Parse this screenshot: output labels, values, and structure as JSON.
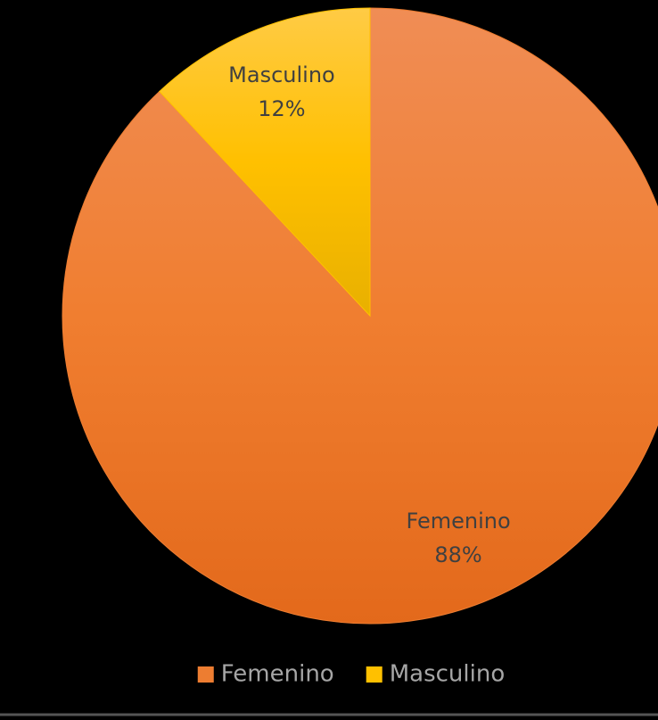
{
  "chart_data": {
    "type": "pie",
    "categories": [
      "Femenino",
      "Masculino"
    ],
    "values": [
      88,
      12
    ],
    "value_labels": [
      "88%",
      "12%"
    ],
    "colors": [
      "#ED7D31",
      "#FFC000"
    ],
    "legend": "bottom"
  }
}
